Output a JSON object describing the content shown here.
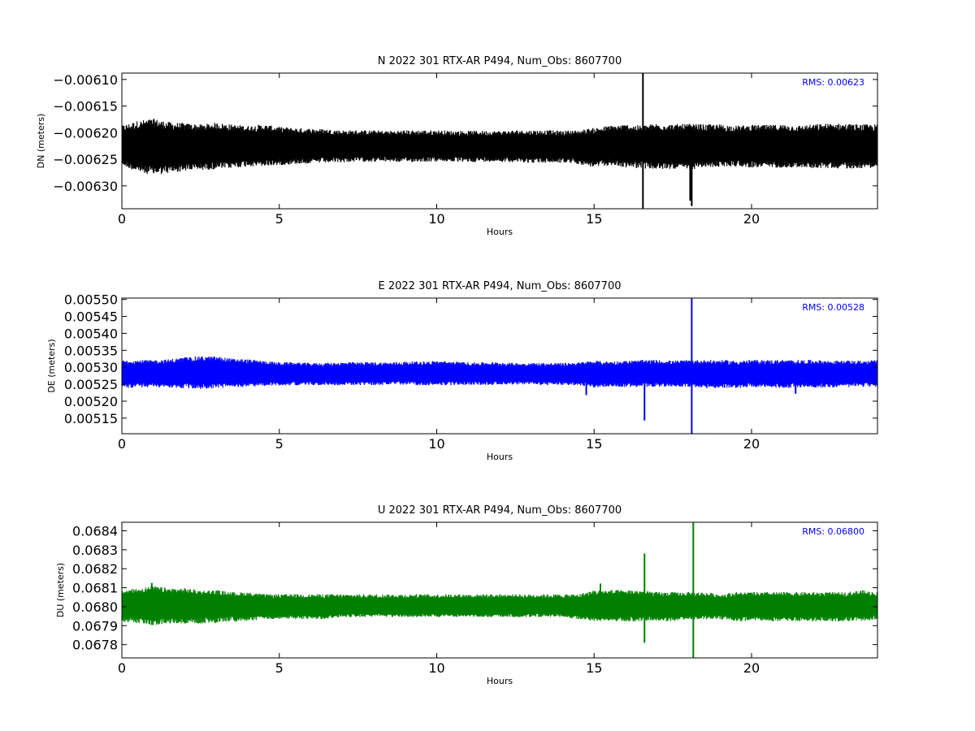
{
  "chart_data": [
    {
      "type": "line",
      "title": "N 2022 301 RTX-AR  P494, Num_Obs: 8607700",
      "xlabel": "Hours",
      "ylabel": "DN (meters)",
      "xlim": [
        0,
        24
      ],
      "ylim": [
        -0.006343,
        -0.006088
      ],
      "xticks": [
        0,
        5,
        10,
        15,
        20
      ],
      "xtick_labels": [
        "0",
        "5",
        "10",
        "15",
        "20"
      ],
      "yticks": [
        -0.0061,
        -0.00615,
        -0.0062,
        -0.00625,
        -0.0063
      ],
      "ytick_labels": [
        "−0.00610",
        "−0.00615",
        "−0.00620",
        "−0.00625",
        "−0.00630"
      ],
      "color": "#000000",
      "rms_label": "RMS:  0.00623",
      "rms_color": "#0000ff",
      "grid": false,
      "series": [
        {
          "x": [
            0,
            0.5,
            1,
            1.5,
            2,
            2.5,
            3,
            3.5,
            4,
            4.5,
            5,
            5.5,
            6,
            6.5,
            7,
            7.5,
            8,
            8.5,
            9,
            9.5,
            10,
            10.5,
            11,
            11.5,
            12,
            12.5,
            13,
            13.5,
            14,
            14.5,
            15,
            15.5,
            16,
            16.5,
            17,
            17.5,
            18,
            18.5,
            19,
            19.5,
            20,
            20.5,
            21,
            21.5,
            22,
            22.5,
            23,
            23.5,
            24
          ],
          "y": [
            -0.006225,
            -0.006225,
            -0.006225,
            -0.006226,
            -0.006225,
            -0.006224,
            -0.006225,
            -0.006224,
            -0.006224,
            -0.006224,
            -0.006224,
            -0.006225,
            -0.006225,
            -0.006225,
            -0.006225,
            -0.006225,
            -0.006226,
            -0.006226,
            -0.006226,
            -0.006226,
            -0.006226,
            -0.006226,
            -0.006227,
            -0.006226,
            -0.006226,
            -0.006226,
            -0.006226,
            -0.006226,
            -0.006227,
            -0.006226,
            -0.006225,
            -0.006225,
            -0.006225,
            -0.006225,
            -0.006225,
            -0.006226,
            -0.006226,
            -0.006226,
            -0.006226,
            -0.006225,
            -0.006225,
            -0.006225,
            -0.006226,
            -0.006226,
            -0.006226,
            -0.006225,
            -0.006225,
            -0.006225,
            -0.006225
          ],
          "band_low": [
            -0.006258,
            -0.00627,
            -0.006275,
            -0.006272,
            -0.006268,
            -0.006266,
            -0.006265,
            -0.006263,
            -0.00626,
            -0.00626,
            -0.006258,
            -0.006256,
            -0.006255,
            -0.006254,
            -0.006253,
            -0.006252,
            -0.006252,
            -0.006252,
            -0.006253,
            -0.006252,
            -0.006252,
            -0.006252,
            -0.006253,
            -0.006252,
            -0.006252,
            -0.006253,
            -0.006254,
            -0.006254,
            -0.006254,
            -0.006256,
            -0.006262,
            -0.006258,
            -0.006262,
            -0.006263,
            -0.006266,
            -0.006264,
            -0.006266,
            -0.006262,
            -0.006261,
            -0.00626,
            -0.006262,
            -0.006262,
            -0.006262,
            -0.006262,
            -0.006263,
            -0.006263,
            -0.006264,
            -0.006263,
            -0.006262
          ],
          "band_high": [
            -0.00619,
            -0.006182,
            -0.006178,
            -0.006184,
            -0.006186,
            -0.006188,
            -0.006185,
            -0.006188,
            -0.00619,
            -0.006188,
            -0.006192,
            -0.006194,
            -0.006195,
            -0.006196,
            -0.006198,
            -0.006198,
            -0.006198,
            -0.006199,
            -0.006198,
            -0.006198,
            -0.006198,
            -0.006199,
            -0.006199,
            -0.006199,
            -0.006199,
            -0.006198,
            -0.006198,
            -0.006198,
            -0.006199,
            -0.006198,
            -0.006194,
            -0.00619,
            -0.006188,
            -0.00619,
            -0.006186,
            -0.006188,
            -0.006187,
            -0.006188,
            -0.006188,
            -0.00619,
            -0.006189,
            -0.006189,
            -0.006188,
            -0.00619,
            -0.006188,
            -0.006186,
            -0.006187,
            -0.006188,
            -0.006188
          ]
        }
      ],
      "spikes": [
        {
          "x": 16.55,
          "low": -0.006343,
          "high": -0.006088
        },
        {
          "x": 18.05,
          "low": -0.006328,
          "high": -0.006228
        },
        {
          "x": 18.1,
          "low": -0.006338,
          "high": -0.006255
        }
      ]
    },
    {
      "type": "line",
      "title": "E 2022 301 RTX-AR  P494, Num_Obs: 8607700",
      "xlabel": "Hours",
      "ylabel": "DE (meters)",
      "xlim": [
        0,
        24
      ],
      "ylim": [
        0.005104,
        0.005504
      ],
      "xticks": [
        0,
        5,
        10,
        15,
        20
      ],
      "xtick_labels": [
        "0",
        "5",
        "10",
        "15",
        "20"
      ],
      "yticks": [
        0.0055,
        0.00545,
        0.0054,
        0.00535,
        0.0053,
        0.00525,
        0.0052,
        0.00515
      ],
      "ytick_labels": [
        "0.00550",
        "0.00545",
        "0.00540",
        "0.00535",
        "0.00530",
        "0.00525",
        "0.00520",
        "0.00515"
      ],
      "color": "#0000ff",
      "rms_label": "RMS:  0.00528",
      "rms_color": "#0000ff",
      "grid": false,
      "series": [
        {
          "x": [
            0,
            0.5,
            1,
            1.5,
            2,
            2.5,
            3,
            3.5,
            4,
            4.5,
            5,
            5.5,
            6,
            6.5,
            7,
            7.5,
            8,
            8.5,
            9,
            9.5,
            10,
            10.5,
            11,
            11.5,
            12,
            12.5,
            13,
            13.5,
            14,
            14.5,
            15,
            15.5,
            16,
            16.5,
            17,
            17.5,
            18,
            18.5,
            19,
            19.5,
            20,
            20.5,
            21,
            21.5,
            22,
            22.5,
            23,
            23.5,
            24
          ],
          "y": [
            0.005282,
            0.005282,
            0.005283,
            0.005283,
            0.005284,
            0.005285,
            0.005284,
            0.005283,
            0.005282,
            0.005282,
            0.005281,
            0.005281,
            0.005281,
            0.00528,
            0.00528,
            0.005281,
            0.005281,
            0.005281,
            0.005282,
            0.005282,
            0.005283,
            0.005282,
            0.005281,
            0.005281,
            0.005281,
            0.005281,
            0.00528,
            0.00528,
            0.00528,
            0.00528,
            0.00528,
            0.00528,
            0.005281,
            0.005282,
            0.005282,
            0.005282,
            0.005281,
            0.005281,
            0.00528,
            0.005279,
            0.00528,
            0.005281,
            0.005281,
            0.005281,
            0.005281,
            0.005281,
            0.005281,
            0.005281,
            0.005281
          ],
          "band_low": [
            0.005242,
            0.005244,
            0.005245,
            0.005244,
            0.005241,
            0.00524,
            0.005242,
            0.005244,
            0.005246,
            0.005248,
            0.005249,
            0.00525,
            0.00525,
            0.00525,
            0.00525,
            0.00525,
            0.00525,
            0.005251,
            0.005251,
            0.00525,
            0.00525,
            0.00525,
            0.005251,
            0.00525,
            0.005252,
            0.005252,
            0.005252,
            0.00525,
            0.00525,
            0.00525,
            0.005244,
            0.005246,
            0.005245,
            0.005244,
            0.005246,
            0.005246,
            0.005246,
            0.005242,
            0.005242,
            0.005242,
            0.005244,
            0.005244,
            0.005242,
            0.005244,
            0.005244,
            0.005244,
            0.005245,
            0.005246,
            0.005245
          ],
          "band_high": [
            0.005318,
            0.005318,
            0.005318,
            0.00532,
            0.005326,
            0.005328,
            0.005328,
            0.005322,
            0.00532,
            0.005316,
            0.005312,
            0.005312,
            0.00531,
            0.00531,
            0.005312,
            0.005312,
            0.005312,
            0.005312,
            0.005314,
            0.005314,
            0.005316,
            0.005314,
            0.005312,
            0.005312,
            0.005312,
            0.00531,
            0.00531,
            0.00531,
            0.00531,
            0.005312,
            0.005316,
            0.005314,
            0.005316,
            0.005318,
            0.005318,
            0.005316,
            0.005318,
            0.005318,
            0.005318,
            0.005316,
            0.005318,
            0.005318,
            0.005318,
            0.005318,
            0.005318,
            0.005316,
            0.005316,
            0.005316,
            0.005318
          ]
        }
      ],
      "spikes": [
        {
          "x": 16.6,
          "low": 0.005143,
          "high": 0.005295
        },
        {
          "x": 18.1,
          "low": 0.005104,
          "high": 0.005504
        },
        {
          "x": 14.75,
          "low": 0.005218,
          "high": 0.00527
        },
        {
          "x": 21.4,
          "low": 0.005222,
          "high": 0.00527
        }
      ]
    },
    {
      "type": "line",
      "title": "U 2022 301 RTX-AR  P494, Num_Obs: 8607700",
      "xlabel": "Hours",
      "ylabel": "DU (meters)",
      "xlim": [
        0,
        24
      ],
      "ylim": [
        0.06773,
        0.068445
      ],
      "xticks": [
        0,
        5,
        10,
        15,
        20
      ],
      "xtick_labels": [
        "0",
        "5",
        "10",
        "15",
        "20"
      ],
      "yticks": [
        0.0684,
        0.0683,
        0.0682,
        0.0681,
        0.068,
        0.0679,
        0.0678
      ],
      "ytick_labels": [
        "0.0684",
        "0.0683",
        "0.0682",
        "0.0681",
        "0.0680",
        "0.0679",
        "0.0678"
      ],
      "color": "#008000",
      "rms_label": "RMS:  0.06800",
      "rms_color": "#0000ff",
      "grid": false,
      "series": [
        {
          "x": [
            0,
            0.5,
            1,
            1.5,
            2,
            2.5,
            3,
            3.5,
            4,
            4.5,
            5,
            5.5,
            6,
            6.5,
            7,
            7.5,
            8,
            8.5,
            9,
            9.5,
            10,
            10.5,
            11,
            11.5,
            12,
            12.5,
            13,
            13.5,
            14,
            14.5,
            15,
            15.5,
            16,
            16.5,
            17,
            17.5,
            18,
            18.5,
            19,
            19.5,
            20,
            20.5,
            21,
            21.5,
            22,
            22.5,
            23,
            23.5,
            24
          ],
          "y": [
            0.06801,
            0.06801,
            0.06802,
            0.06801,
            0.06801,
            0.06801,
            0.068005,
            0.068005,
            0.068005,
            0.068,
            0.068,
            0.068,
            0.068,
            0.068,
            0.068,
            0.068,
            0.068,
            0.068,
            0.068,
            0.068,
            0.068,
            0.068,
            0.068,
            0.068,
            0.068,
            0.068,
            0.068,
            0.068,
            0.068,
            0.068,
            0.068,
            0.068,
            0.068,
            0.068,
            0.068,
            0.068,
            0.068,
            0.068,
            0.068,
            0.068,
            0.068,
            0.068,
            0.068,
            0.068,
            0.068,
            0.068,
            0.068,
            0.068,
            0.068
          ],
          "band_low": [
            0.06793,
            0.06792,
            0.06791,
            0.06792,
            0.06792,
            0.06792,
            0.06792,
            0.06793,
            0.06793,
            0.06794,
            0.06794,
            0.06794,
            0.06794,
            0.06794,
            0.06795,
            0.06795,
            0.06795,
            0.06795,
            0.06795,
            0.06795,
            0.06795,
            0.06795,
            0.06795,
            0.06795,
            0.06795,
            0.06795,
            0.06795,
            0.06795,
            0.06795,
            0.06794,
            0.06793,
            0.06793,
            0.06793,
            0.06793,
            0.06793,
            0.06793,
            0.06794,
            0.06794,
            0.06794,
            0.06793,
            0.06793,
            0.06793,
            0.06793,
            0.06793,
            0.06793,
            0.06793,
            0.06793,
            0.06793,
            0.06794
          ],
          "band_high": [
            0.06808,
            0.06809,
            0.0681,
            0.06809,
            0.06809,
            0.06808,
            0.06808,
            0.06807,
            0.06807,
            0.06806,
            0.06806,
            0.06806,
            0.06806,
            0.06806,
            0.06806,
            0.06806,
            0.06806,
            0.06806,
            0.06806,
            0.06806,
            0.06806,
            0.06806,
            0.06806,
            0.06806,
            0.06806,
            0.06806,
            0.06806,
            0.06806,
            0.06806,
            0.06806,
            0.06808,
            0.06808,
            0.06808,
            0.06808,
            0.06807,
            0.06807,
            0.06807,
            0.06807,
            0.06806,
            0.06807,
            0.06807,
            0.06807,
            0.06807,
            0.06807,
            0.06807,
            0.06807,
            0.06807,
            0.06808,
            0.06807
          ]
        }
      ],
      "spikes": [
        {
          "x": 16.6,
          "low": 0.06781,
          "high": 0.06828
        },
        {
          "x": 18.15,
          "low": 0.06773,
          "high": 0.068445
        },
        {
          "x": 0.95,
          "low": 0.06798,
          "high": 0.068125
        },
        {
          "x": 15.2,
          "low": 0.06796,
          "high": 0.068122
        }
      ]
    }
  ]
}
